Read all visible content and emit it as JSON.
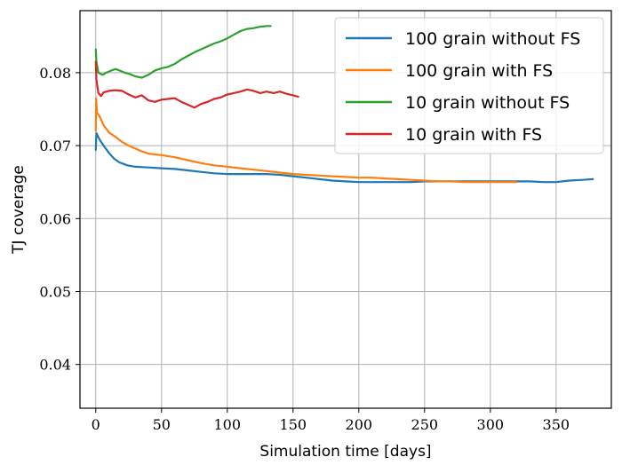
{
  "chart_data": {
    "type": "line",
    "title": "",
    "xlabel": "Simulation time [days]",
    "ylabel": "TJ coverage",
    "xlim": [
      -12,
      392
    ],
    "ylim": [
      0.034,
      0.0885
    ],
    "xticks": [
      0,
      50,
      100,
      150,
      200,
      250,
      300,
      350
    ],
    "xtick_labels": [
      "0",
      "50",
      "100",
      "150",
      "200",
      "250",
      "300",
      "350"
    ],
    "yticks": [
      0.04,
      0.05,
      0.06,
      0.07,
      0.08
    ],
    "ytick_labels": [
      "0.04",
      "0.05",
      "0.06",
      "0.07",
      "0.08"
    ],
    "grid": true,
    "legend_position": "top-right",
    "series": [
      {
        "name": "100 grain without FS",
        "color": "#1f77b4",
        "points": [
          [
            0,
            0.0694
          ],
          [
            0.5,
            0.0717
          ],
          [
            3,
            0.0708
          ],
          [
            6,
            0.07
          ],
          [
            10,
            0.069
          ],
          [
            14,
            0.0682
          ],
          [
            18,
            0.0677
          ],
          [
            24,
            0.0673
          ],
          [
            30,
            0.0671
          ],
          [
            40,
            0.067
          ],
          [
            50,
            0.0669
          ],
          [
            60,
            0.0668
          ],
          [
            70,
            0.0666
          ],
          [
            80,
            0.0664
          ],
          [
            90,
            0.0662
          ],
          [
            100,
            0.0661
          ],
          [
            110,
            0.0661
          ],
          [
            120,
            0.0661
          ],
          [
            130,
            0.0661
          ],
          [
            140,
            0.066
          ],
          [
            150,
            0.0658
          ],
          [
            160,
            0.0656
          ],
          [
            170,
            0.0654
          ],
          [
            180,
            0.0652
          ],
          [
            190,
            0.0651
          ],
          [
            200,
            0.065
          ],
          [
            210,
            0.065
          ],
          [
            220,
            0.065
          ],
          [
            230,
            0.065
          ],
          [
            240,
            0.065
          ],
          [
            250,
            0.0651
          ],
          [
            260,
            0.0651
          ],
          [
            270,
            0.0651
          ],
          [
            280,
            0.0651
          ],
          [
            290,
            0.0651
          ],
          [
            300,
            0.0651
          ],
          [
            310,
            0.0651
          ],
          [
            320,
            0.0651
          ],
          [
            330,
            0.0651
          ],
          [
            340,
            0.065
          ],
          [
            350,
            0.065
          ],
          [
            360,
            0.0652
          ],
          [
            370,
            0.0653
          ],
          [
            378,
            0.0654
          ]
        ]
      },
      {
        "name": "100 grain with FS",
        "color": "#ff7f0e",
        "points": [
          [
            0,
            0.072
          ],
          [
            0.3,
            0.0765
          ],
          [
            1,
            0.0745
          ],
          [
            3,
            0.074
          ],
          [
            6,
            0.0728
          ],
          [
            10,
            0.0718
          ],
          [
            15,
            0.0712
          ],
          [
            20,
            0.0705
          ],
          [
            25,
            0.07
          ],
          [
            30,
            0.0696
          ],
          [
            35,
            0.0692
          ],
          [
            40,
            0.0689
          ],
          [
            50,
            0.0687
          ],
          [
            60,
            0.0684
          ],
          [
            70,
            0.068
          ],
          [
            80,
            0.0676
          ],
          [
            90,
            0.0673
          ],
          [
            100,
            0.0671
          ],
          [
            110,
            0.0669
          ],
          [
            120,
            0.0667
          ],
          [
            130,
            0.0665
          ],
          [
            140,
            0.0663
          ],
          [
            150,
            0.0661
          ],
          [
            160,
            0.066
          ],
          [
            170,
            0.0659
          ],
          [
            180,
            0.0658
          ],
          [
            190,
            0.0657
          ],
          [
            200,
            0.0656
          ],
          [
            210,
            0.0656
          ],
          [
            220,
            0.0655
          ],
          [
            230,
            0.0654
          ],
          [
            240,
            0.0653
          ],
          [
            250,
            0.0652
          ],
          [
            260,
            0.0651
          ],
          [
            270,
            0.0651
          ],
          [
            280,
            0.065
          ],
          [
            290,
            0.065
          ],
          [
            300,
            0.065
          ],
          [
            310,
            0.065
          ],
          [
            320,
            0.065
          ]
        ]
      },
      {
        "name": "10 grain without FS",
        "color": "#2ca02c",
        "points": [
          [
            0,
            0.0832
          ],
          [
            0.5,
            0.0815
          ],
          [
            2,
            0.08
          ],
          [
            5,
            0.0797
          ],
          [
            8,
            0.08
          ],
          [
            12,
            0.0803
          ],
          [
            15,
            0.0805
          ],
          [
            18,
            0.0803
          ],
          [
            22,
            0.08
          ],
          [
            26,
            0.0798
          ],
          [
            30,
            0.0795
          ],
          [
            35,
            0.0793
          ],
          [
            40,
            0.0797
          ],
          [
            45,
            0.0803
          ],
          [
            50,
            0.0806
          ],
          [
            55,
            0.0808
          ],
          [
            60,
            0.0812
          ],
          [
            65,
            0.0818
          ],
          [
            70,
            0.0823
          ],
          [
            75,
            0.0828
          ],
          [
            80,
            0.0832
          ],
          [
            85,
            0.0836
          ],
          [
            90,
            0.084
          ],
          [
            95,
            0.0843
          ],
          [
            100,
            0.0847
          ],
          [
            105,
            0.0852
          ],
          [
            110,
            0.0857
          ],
          [
            115,
            0.086
          ],
          [
            120,
            0.0861
          ],
          [
            125,
            0.0863
          ],
          [
            130,
            0.0864
          ],
          [
            133,
            0.0864
          ]
        ]
      },
      {
        "name": "10 grain with FS",
        "color": "#d62728",
        "points": [
          [
            0,
            0.0815
          ],
          [
            0.5,
            0.079
          ],
          [
            2,
            0.0772
          ],
          [
            4,
            0.0768
          ],
          [
            6,
            0.0773
          ],
          [
            10,
            0.0775
          ],
          [
            15,
            0.0776
          ],
          [
            20,
            0.0775
          ],
          [
            25,
            0.077
          ],
          [
            30,
            0.0766
          ],
          [
            35,
            0.0769
          ],
          [
            40,
            0.0762
          ],
          [
            45,
            0.076
          ],
          [
            50,
            0.0763
          ],
          [
            55,
            0.0764
          ],
          [
            60,
            0.0765
          ],
          [
            65,
            0.076
          ],
          [
            70,
            0.0756
          ],
          [
            75,
            0.0752
          ],
          [
            80,
            0.0757
          ],
          [
            85,
            0.076
          ],
          [
            90,
            0.0764
          ],
          [
            95,
            0.0766
          ],
          [
            100,
            0.077
          ],
          [
            105,
            0.0772
          ],
          [
            110,
            0.0774
          ],
          [
            115,
            0.0777
          ],
          [
            120,
            0.0775
          ],
          [
            125,
            0.0772
          ],
          [
            130,
            0.0774
          ],
          [
            135,
            0.0772
          ],
          [
            140,
            0.0774
          ],
          [
            145,
            0.0771
          ],
          [
            150,
            0.0769
          ],
          [
            154,
            0.0767
          ]
        ]
      }
    ]
  }
}
